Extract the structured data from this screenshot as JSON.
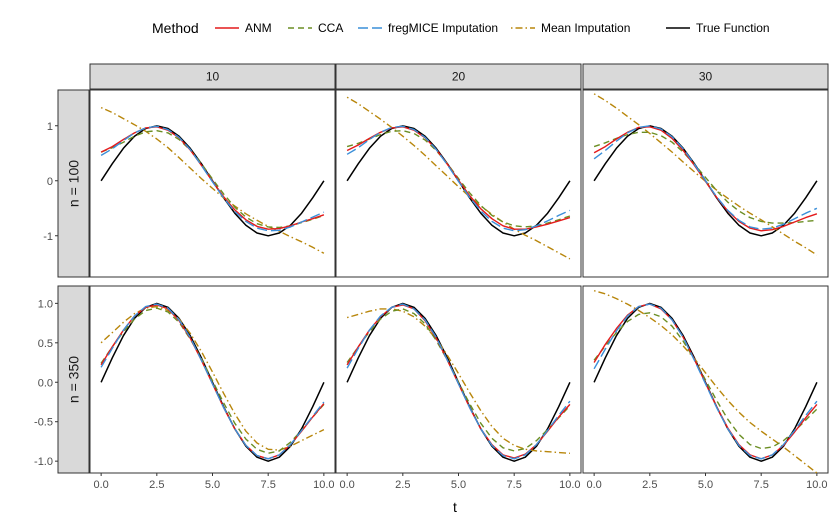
{
  "chart_data": {
    "type": "line",
    "xlabel": "t",
    "ylabel": "",
    "legend": {
      "title": "Method",
      "position": "top",
      "entries": [
        {
          "name": "ANM",
          "color": "#e41a1c",
          "dash": "solid"
        },
        {
          "name": "CCA",
          "color": "#6b8e23",
          "dash": "dashed"
        },
        {
          "name": "fregMICE Imputation",
          "color": "#3a8fd9",
          "dash": "longdash"
        },
        {
          "name": "Mean Imputation",
          "color": "#b8860b",
          "dash": "dotdash"
        },
        {
          "name": "True Function",
          "color": "#000000",
          "dash": "solid"
        }
      ]
    },
    "column_labels": [
      "10",
      "20",
      "30"
    ],
    "row_labels": [
      "n = 100",
      "n = 350"
    ],
    "x_ticks": [
      "0.0",
      "2.5",
      "5.0",
      "7.5",
      "10.0"
    ],
    "x_tick_values": [
      0,
      2.5,
      5,
      7.5,
      10
    ],
    "xlim": [
      -0.5,
      10.5
    ],
    "rows": [
      {
        "ylim": [
          -1.75,
          1.65
        ],
        "y_ticks": [
          "-1",
          "0",
          "1"
        ],
        "y_tick_values": [
          -1,
          0,
          1
        ]
      },
      {
        "ylim": [
          -1.15,
          1.22
        ],
        "y_ticks": [
          "-1.0",
          "-0.5",
          "0.0",
          "0.5",
          "1.0"
        ],
        "y_tick_values": [
          -1,
          -0.5,
          0,
          0.5,
          1
        ]
      }
    ],
    "x": [
      0,
      0.5,
      1,
      1.5,
      2,
      2.5,
      3,
      3.5,
      4,
      4.5,
      5,
      5.5,
      6,
      6.5,
      7,
      7.5,
      8,
      8.5,
      9,
      9.5,
      10
    ],
    "panels": [
      {
        "row": 0,
        "col": 0,
        "series": [
          {
            "name": "ANM",
            "values": [
              0.52,
              0.62,
              0.75,
              0.87,
              0.96,
              0.98,
              0.92,
              0.78,
              0.56,
              0.28,
              -0.01,
              -0.29,
              -0.53,
              -0.71,
              -0.83,
              -0.88,
              -0.87,
              -0.82,
              -0.75,
              -0.69,
              -0.62
            ]
          },
          {
            "name": "CCA",
            "values": [
              0.52,
              0.6,
              0.7,
              0.81,
              0.89,
              0.91,
              0.87,
              0.75,
              0.56,
              0.31,
              0.03,
              -0.24,
              -0.48,
              -0.66,
              -0.78,
              -0.84,
              -0.85,
              -0.82,
              -0.76,
              -0.7,
              -0.63
            ]
          },
          {
            "name": "fregMICE Imputation",
            "values": [
              0.46,
              0.58,
              0.73,
              0.87,
              0.96,
              0.99,
              0.93,
              0.79,
              0.57,
              0.28,
              -0.02,
              -0.31,
              -0.56,
              -0.74,
              -0.86,
              -0.91,
              -0.9,
              -0.84,
              -0.75,
              -0.66,
              -0.57
            ]
          },
          {
            "name": "Mean Imputation",
            "values": [
              1.33,
              1.24,
              1.13,
              1.02,
              0.9,
              0.76,
              0.6,
              0.42,
              0.23,
              0.04,
              -0.14,
              -0.31,
              -0.46,
              -0.6,
              -0.72,
              -0.83,
              -0.92,
              -1.02,
              -1.11,
              -1.21,
              -1.32
            ]
          },
          {
            "name": "True Function",
            "values": [
              0,
              0.31,
              0.59,
              0.81,
              0.95,
              1.0,
              0.95,
              0.81,
              0.59,
              0.31,
              0,
              -0.31,
              -0.59,
              -0.81,
              -0.95,
              -1.0,
              -0.95,
              -0.81,
              -0.59,
              -0.31,
              0
            ]
          }
        ]
      },
      {
        "row": 0,
        "col": 1,
        "series": [
          {
            "name": "ANM",
            "values": [
              0.55,
              0.65,
              0.77,
              0.88,
              0.96,
              0.98,
              0.92,
              0.78,
              0.57,
              0.3,
              0.01,
              -0.27,
              -0.51,
              -0.69,
              -0.82,
              -0.88,
              -0.88,
              -0.84,
              -0.79,
              -0.73,
              -0.67
            ]
          },
          {
            "name": "CCA",
            "values": [
              0.62,
              0.68,
              0.76,
              0.84,
              0.9,
              0.91,
              0.86,
              0.74,
              0.55,
              0.31,
              0.04,
              -0.22,
              -0.45,
              -0.63,
              -0.75,
              -0.82,
              -0.84,
              -0.82,
              -0.77,
              -0.71,
              -0.64
            ]
          },
          {
            "name": "fregMICE Imputation",
            "values": [
              0.48,
              0.6,
              0.75,
              0.88,
              0.97,
              0.99,
              0.93,
              0.79,
              0.57,
              0.29,
              -0.01,
              -0.3,
              -0.55,
              -0.74,
              -0.86,
              -0.91,
              -0.89,
              -0.82,
              -0.73,
              -0.63,
              -0.54
            ]
          },
          {
            "name": "Mean Imputation",
            "values": [
              1.52,
              1.4,
              1.26,
              1.12,
              0.97,
              0.81,
              0.64,
              0.46,
              0.27,
              0.08,
              -0.11,
              -0.29,
              -0.46,
              -0.61,
              -0.75,
              -0.88,
              -0.99,
              -1.09,
              -1.2,
              -1.31,
              -1.42
            ]
          },
          {
            "name": "True Function",
            "values": [
              0,
              0.31,
              0.59,
              0.81,
              0.95,
              1.0,
              0.95,
              0.81,
              0.59,
              0.31,
              0,
              -0.31,
              -0.59,
              -0.81,
              -0.95,
              -1.0,
              -0.95,
              -0.81,
              -0.59,
              -0.31,
              0
            ]
          }
        ]
      },
      {
        "row": 0,
        "col": 2,
        "series": [
          {
            "name": "ANM",
            "values": [
              0.51,
              0.62,
              0.76,
              0.88,
              0.97,
              0.98,
              0.92,
              0.77,
              0.55,
              0.28,
              -0.01,
              -0.3,
              -0.55,
              -0.74,
              -0.86,
              -0.91,
              -0.89,
              -0.83,
              -0.75,
              -0.67,
              -0.6
            ]
          },
          {
            "name": "CCA",
            "values": [
              0.62,
              0.69,
              0.77,
              0.84,
              0.88,
              0.88,
              0.82,
              0.7,
              0.52,
              0.3,
              0.06,
              -0.18,
              -0.39,
              -0.55,
              -0.67,
              -0.74,
              -0.77,
              -0.77,
              -0.76,
              -0.74,
              -0.72
            ]
          },
          {
            "name": "fregMICE Imputation",
            "values": [
              0.4,
              0.55,
              0.72,
              0.87,
              0.97,
              1.0,
              0.94,
              0.8,
              0.58,
              0.3,
              0.0,
              -0.29,
              -0.54,
              -0.72,
              -0.84,
              -0.88,
              -0.86,
              -0.79,
              -0.69,
              -0.59,
              -0.5
            ]
          },
          {
            "name": "Mean Imputation",
            "values": [
              1.58,
              1.46,
              1.32,
              1.17,
              1.02,
              0.86,
              0.69,
              0.52,
              0.34,
              0.16,
              -0.01,
              -0.17,
              -0.32,
              -0.46,
              -0.59,
              -0.71,
              -0.84,
              -0.97,
              -1.1,
              -1.22,
              -1.35
            ]
          },
          {
            "name": "True Function",
            "values": [
              0,
              0.31,
              0.59,
              0.81,
              0.95,
              1.0,
              0.95,
              0.81,
              0.59,
              0.31,
              0,
              -0.31,
              -0.59,
              -0.81,
              -0.95,
              -1.0,
              -0.95,
              -0.81,
              -0.59,
              -0.31,
              0
            ]
          }
        ]
      },
      {
        "row": 1,
        "col": 0,
        "series": [
          {
            "name": "ANM",
            "values": [
              0.22,
              0.45,
              0.66,
              0.84,
              0.95,
              0.98,
              0.93,
              0.78,
              0.56,
              0.28,
              -0.02,
              -0.32,
              -0.59,
              -0.8,
              -0.93,
              -0.97,
              -0.92,
              -0.79,
              -0.62,
              -0.44,
              -0.27
            ]
          },
          {
            "name": "CCA",
            "values": [
              0.24,
              0.45,
              0.64,
              0.8,
              0.91,
              0.94,
              0.89,
              0.76,
              0.55,
              0.3,
              0.02,
              -0.26,
              -0.52,
              -0.72,
              -0.85,
              -0.9,
              -0.87,
              -0.76,
              -0.61,
              -0.44,
              -0.28
            ]
          },
          {
            "name": "fregMICE Imputation",
            "values": [
              0.19,
              0.43,
              0.66,
              0.84,
              0.96,
              0.99,
              0.94,
              0.79,
              0.57,
              0.28,
              -0.02,
              -0.32,
              -0.59,
              -0.8,
              -0.93,
              -0.97,
              -0.92,
              -0.79,
              -0.61,
              -0.43,
              -0.25
            ]
          },
          {
            "name": "Mean Imputation",
            "values": [
              0.5,
              0.63,
              0.76,
              0.87,
              0.94,
              0.96,
              0.91,
              0.8,
              0.62,
              0.39,
              0.13,
              -0.14,
              -0.4,
              -0.62,
              -0.77,
              -0.85,
              -0.86,
              -0.81,
              -0.74,
              -0.67,
              -0.6
            ]
          },
          {
            "name": "True Function",
            "values": [
              0,
              0.31,
              0.59,
              0.81,
              0.95,
              1.0,
              0.95,
              0.81,
              0.59,
              0.31,
              0,
              -0.31,
              -0.59,
              -0.81,
              -0.95,
              -1.0,
              -0.95,
              -0.81,
              -0.59,
              -0.31,
              0
            ]
          }
        ]
      },
      {
        "row": 1,
        "col": 1,
        "series": [
          {
            "name": "ANM",
            "values": [
              0.22,
              0.45,
              0.66,
              0.83,
              0.95,
              0.98,
              0.93,
              0.78,
              0.56,
              0.28,
              -0.02,
              -0.32,
              -0.59,
              -0.79,
              -0.92,
              -0.96,
              -0.91,
              -0.79,
              -0.62,
              -0.44,
              -0.28
            ]
          },
          {
            "name": "CCA",
            "values": [
              0.25,
              0.45,
              0.64,
              0.8,
              0.9,
              0.93,
              0.87,
              0.74,
              0.53,
              0.28,
              0.0,
              -0.27,
              -0.52,
              -0.71,
              -0.83,
              -0.87,
              -0.84,
              -0.74,
              -0.6,
              -0.45,
              -0.3
            ]
          },
          {
            "name": "fregMICE Imputation",
            "values": [
              0.18,
              0.43,
              0.66,
              0.84,
              0.95,
              0.99,
              0.93,
              0.79,
              0.57,
              0.28,
              -0.02,
              -0.32,
              -0.59,
              -0.8,
              -0.93,
              -0.97,
              -0.92,
              -0.79,
              -0.61,
              -0.42,
              -0.24
            ]
          },
          {
            "name": "Mean Imputation",
            "values": [
              0.82,
              0.86,
              0.9,
              0.93,
              0.93,
              0.9,
              0.83,
              0.71,
              0.55,
              0.34,
              0.11,
              -0.13,
              -0.36,
              -0.56,
              -0.71,
              -0.8,
              -0.85,
              -0.87,
              -0.88,
              -0.89,
              -0.9
            ]
          },
          {
            "name": "True Function",
            "values": [
              0,
              0.31,
              0.59,
              0.81,
              0.95,
              1.0,
              0.95,
              0.81,
              0.59,
              0.31,
              0,
              -0.31,
              -0.59,
              -0.81,
              -0.95,
              -1.0,
              -0.95,
              -0.81,
              -0.59,
              -0.31,
              0
            ]
          }
        ]
      },
      {
        "row": 1,
        "col": 2,
        "series": [
          {
            "name": "ANM",
            "values": [
              0.25,
              0.48,
              0.68,
              0.85,
              0.96,
              0.99,
              0.93,
              0.79,
              0.57,
              0.29,
              -0.01,
              -0.31,
              -0.58,
              -0.79,
              -0.92,
              -0.97,
              -0.92,
              -0.8,
              -0.63,
              -0.45,
              -0.28
            ]
          },
          {
            "name": "CCA",
            "values": [
              0.28,
              0.46,
              0.63,
              0.77,
              0.86,
              0.88,
              0.83,
              0.71,
              0.52,
              0.29,
              0.03,
              -0.23,
              -0.47,
              -0.66,
              -0.79,
              -0.84,
              -0.82,
              -0.74,
              -0.62,
              -0.48,
              -0.34
            ]
          },
          {
            "name": "fregMICE Imputation",
            "values": [
              0.17,
              0.42,
              0.65,
              0.84,
              0.96,
              0.99,
              0.94,
              0.79,
              0.57,
              0.28,
              -0.02,
              -0.32,
              -0.59,
              -0.8,
              -0.93,
              -0.97,
              -0.92,
              -0.79,
              -0.61,
              -0.42,
              -0.24
            ]
          },
          {
            "name": "Mean Imputation",
            "values": [
              1.16,
              1.12,
              1.06,
              0.99,
              0.91,
              0.82,
              0.72,
              0.6,
              0.46,
              0.3,
              0.12,
              -0.06,
              -0.23,
              -0.38,
              -0.51,
              -0.62,
              -0.72,
              -0.82,
              -0.93,
              -1.04,
              -1.15
            ]
          },
          {
            "name": "True Function",
            "values": [
              0,
              0.31,
              0.59,
              0.81,
              0.95,
              1.0,
              0.95,
              0.81,
              0.59,
              0.31,
              0,
              -0.31,
              -0.59,
              -0.81,
              -0.95,
              -1.0,
              -0.95,
              -0.81,
              -0.59,
              -0.31,
              0
            ]
          }
        ]
      }
    ]
  }
}
